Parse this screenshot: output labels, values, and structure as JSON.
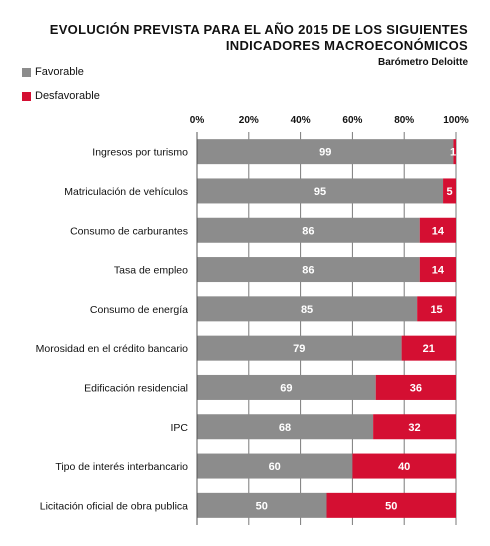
{
  "title_line1": "EVOLUCIÓN PREVISTA PARA EL AÑO 2015 DE LOS SIGUIENTES",
  "title_line2": "INDICADORES MACROECONÓMICOS",
  "subtitle": "Barómetro Deloitte",
  "colors": {
    "favorable": "#8c8c8c",
    "desfavorable": "#d40f32",
    "grid": "#7a7a7a"
  },
  "chart_data": {
    "type": "bar",
    "orientation": "horizontal",
    "stacked": true,
    "categories": [
      "Ingresos por turismo",
      "Matriculación de vehículos",
      "Consumo de carburantes",
      "Tasa de empleo",
      "Consumo de energía",
      "Morosidad en el crédito bancario",
      "Edificación residencial",
      "IPC",
      "Tipo de interés interbancario",
      "Licitación oficial de obra publica"
    ],
    "series": [
      {
        "name": "Favorable",
        "values": [
          99,
          95,
          86,
          86,
          85,
          79,
          69,
          68,
          60,
          50
        ]
      },
      {
        "name": "Desfavorable",
        "values": [
          1,
          5,
          14,
          14,
          15,
          21,
          36,
          32,
          40,
          50
        ]
      }
    ],
    "xlim": [
      0,
      100
    ],
    "x_ticks": [
      "0%",
      "20%",
      "40%",
      "60%",
      "80%",
      "100%"
    ],
    "legend_position": "top-left",
    "grid": true
  }
}
